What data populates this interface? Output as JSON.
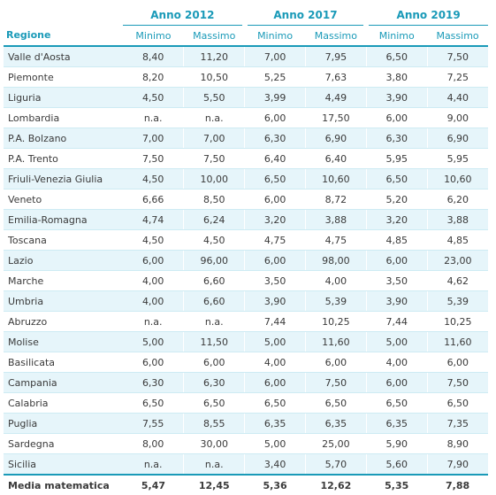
{
  "header": {
    "years": [
      "Anno 2012",
      "Anno 2017",
      "Anno 2019"
    ],
    "region_label": "Regione",
    "min_label": "Minimo",
    "max_label": "Massimo"
  },
  "rows": [
    {
      "region": "Valle d'Aosta",
      "values": [
        "8,40",
        "11,20",
        "7,00",
        "7,95",
        "6,50",
        "7,50"
      ]
    },
    {
      "region": "Piemonte",
      "values": [
        "8,20",
        "10,50",
        "5,25",
        "7,63",
        "3,80",
        "7,25"
      ]
    },
    {
      "region": "Liguria",
      "values": [
        "4,50",
        "5,50",
        "3,99",
        "4,49",
        "3,90",
        "4,40"
      ]
    },
    {
      "region": "Lombardia",
      "values": [
        "n.a.",
        "n.a.",
        "6,00",
        "17,50",
        "6,00",
        "9,00"
      ]
    },
    {
      "region": "P.A. Bolzano",
      "values": [
        "7,00",
        "7,00",
        "6,30",
        "6,90",
        "6,30",
        "6,90"
      ]
    },
    {
      "region": "P.A. Trento",
      "values": [
        "7,50",
        "7,50",
        "6,40",
        "6,40",
        "5,95",
        "5,95"
      ]
    },
    {
      "region": "Friuli-Venezia Giulia",
      "values": [
        "4,50",
        "10,00",
        "6,50",
        "10,60",
        "6,50",
        "10,60"
      ]
    },
    {
      "region": "Veneto",
      "values": [
        "6,66",
        "8,50",
        "6,00",
        "8,72",
        "5,20",
        "6,20"
      ]
    },
    {
      "region": "Emilia-Romagna",
      "values": [
        "4,74",
        "6,24",
        "3,20",
        "3,88",
        "3,20",
        "3,88"
      ]
    },
    {
      "region": "Toscana",
      "values": [
        "4,50",
        "4,50",
        "4,75",
        "4,75",
        "4,85",
        "4,85"
      ]
    },
    {
      "region": "Lazio",
      "values": [
        "6,00",
        "96,00",
        "6,00",
        "98,00",
        "6,00",
        "23,00"
      ]
    },
    {
      "region": "Marche",
      "values": [
        "4,00",
        "6,60",
        "3,50",
        "4,00",
        "3,50",
        "4,62"
      ]
    },
    {
      "region": "Umbria",
      "values": [
        "4,00",
        "6,60",
        "3,90",
        "5,39",
        "3,90",
        "5,39"
      ]
    },
    {
      "region": "Abruzzo",
      "values": [
        "n.a.",
        "n.a.",
        "7,44",
        "10,25",
        "7,44",
        "10,25"
      ]
    },
    {
      "region": "Molise",
      "values": [
        "5,00",
        "11,50",
        "5,00",
        "11,60",
        "5,00",
        "11,60"
      ]
    },
    {
      "region": "Basilicata",
      "values": [
        "6,00",
        "6,00",
        "4,00",
        "6,00",
        "4,00",
        "6,00"
      ]
    },
    {
      "region": "Campania",
      "values": [
        "6,30",
        "6,30",
        "6,00",
        "7,50",
        "6,00",
        "7,50"
      ]
    },
    {
      "region": "Calabria",
      "values": [
        "6,50",
        "6,50",
        "6,50",
        "6,50",
        "6,50",
        "6,50"
      ]
    },
    {
      "region": "Puglia",
      "values": [
        "7,55",
        "8,55",
        "6,35",
        "6,35",
        "6,35",
        "7,35"
      ]
    },
    {
      "region": "Sardegna",
      "values": [
        "8,00",
        "30,00",
        "5,00",
        "25,00",
        "5,90",
        "8,90"
      ]
    },
    {
      "region": "Sicilia",
      "values": [
        "n.a.",
        "n.a.",
        "3,40",
        "5,70",
        "5,60",
        "7,90"
      ]
    }
  ],
  "footer": {
    "label": "Media matematica",
    "values": [
      "5,47",
      "12,45",
      "5,36",
      "12,62",
      "5,35",
      "7,88"
    ]
  }
}
